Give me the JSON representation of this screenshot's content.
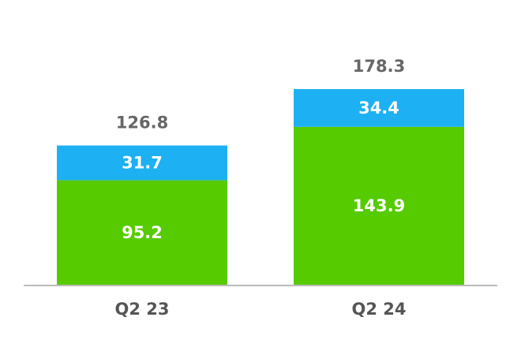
{
  "chart_data": {
    "type": "stacked-bar",
    "categories": [
      "Q2 23",
      "Q2 24"
    ],
    "series": [
      {
        "color": "#55cb00",
        "values": [
          95.2,
          143.9
        ]
      },
      {
        "color": "#1db0f2",
        "values": [
          31.7,
          34.4
        ]
      }
    ],
    "totals": [
      126.8,
      178.3
    ]
  }
}
